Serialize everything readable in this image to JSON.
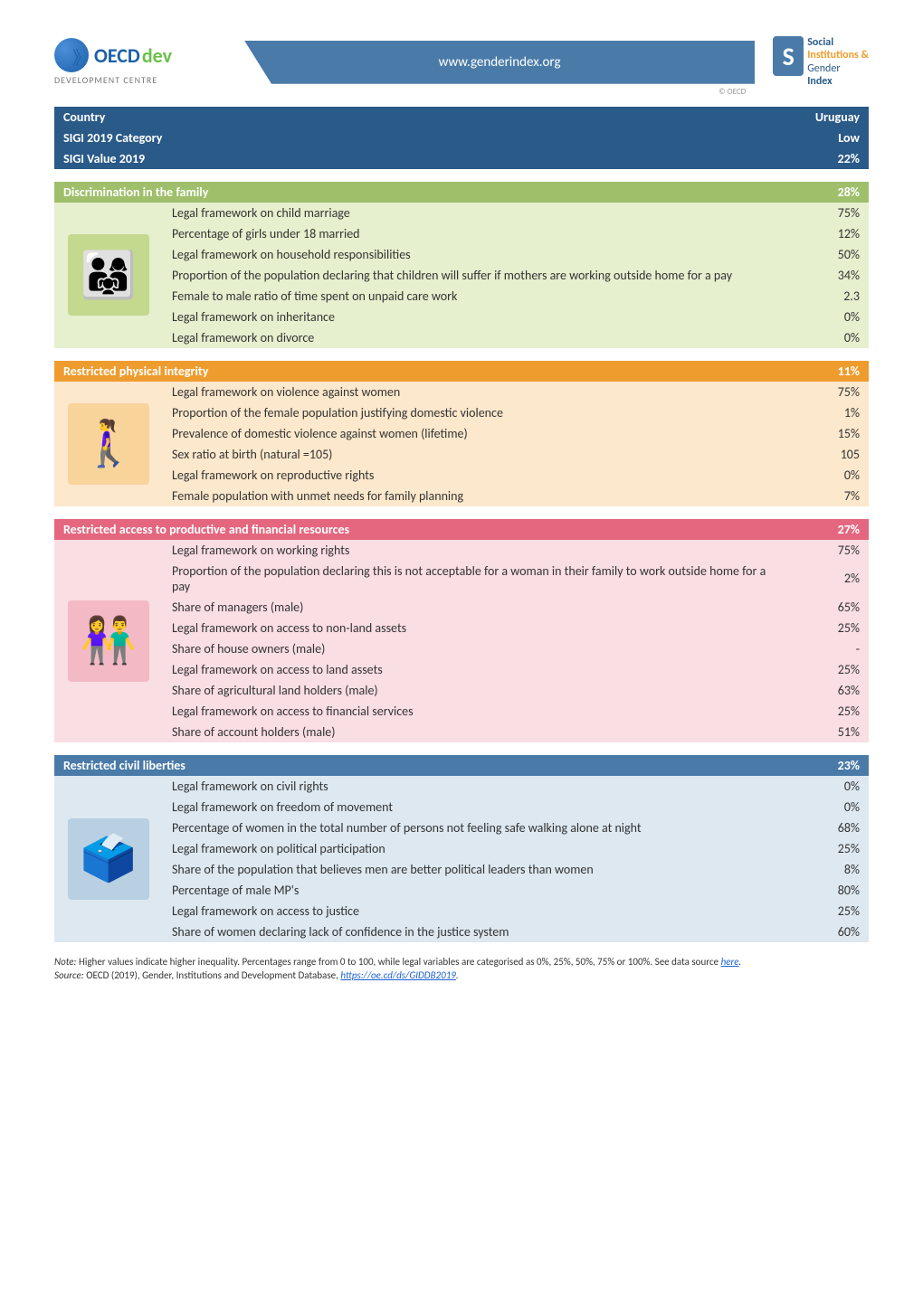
{
  "header": {
    "oecd_name": "OECD",
    "oecd_dev": "dev",
    "oecd_sub": "DEVELOPMENT CENTRE",
    "banner_url": "www.genderindex.org",
    "banner_copyright": "© OECD",
    "sigi_line1": "Social",
    "sigi_line2": "Institutions &",
    "sigi_line3": "Gender",
    "sigi_line4": "Index",
    "sigi_s": "S"
  },
  "summary": {
    "bg": "#2a5a88",
    "rows": [
      {
        "label": "Country",
        "value": "Uruguay"
      },
      {
        "label": "SIGI 2019 Category",
        "value": "Low"
      },
      {
        "label": "SIGI Value 2019",
        "value": "22%"
      }
    ]
  },
  "sections": [
    {
      "id": "family",
      "title": "Discrimination in the family",
      "title_value": "28%",
      "header_bg": "#9fbf6b",
      "row_bg": "#e6efce",
      "icon_bg": "#c4d98e",
      "icon_glyph": "👨‍👩‍👧",
      "rows": [
        {
          "label": "Legal framework on child marriage",
          "value": "75%"
        },
        {
          "label": "Percentage of girls under 18 married",
          "value": "12%"
        },
        {
          "label": "Legal framework on household responsibilities",
          "value": "50%"
        },
        {
          "label": "Proportion of the population declaring that children will suffer if mothers are working outside home for a pay",
          "value": "34%"
        },
        {
          "label": "Female to male ratio of time spent on unpaid care work",
          "value": "2.3"
        },
        {
          "label": "Legal framework on inheritance",
          "value": "0%"
        },
        {
          "label": "Legal framework on divorce",
          "value": "0%"
        }
      ]
    },
    {
      "id": "physical",
      "title": "Restricted physical integrity",
      "title_value": "11%",
      "header_bg": "#ef9c2e",
      "row_bg": "#fce8cc",
      "icon_bg": "#f8d49a",
      "icon_glyph": "🚶‍♀️",
      "rows": [
        {
          "label": "Legal framework on violence against women",
          "value": "75%"
        },
        {
          "label": "Proportion of the female population justifying  domestic violence",
          "value": "1%"
        },
        {
          "label": "Prevalence of domestic violence against women (lifetime)",
          "value": "15%"
        },
        {
          "label": "Sex ratio at birth (natural =105)",
          "value": "105"
        },
        {
          "label": "Legal framework on reproductive rights",
          "value": "0%"
        },
        {
          "label": "Female population with unmet needs for family planning",
          "value": "7%"
        }
      ]
    },
    {
      "id": "resources",
      "title": "Restricted access to productive and financial resources",
      "title_value": "27%",
      "header_bg": "#e4677f",
      "row_bg": "#f9dee4",
      "icon_bg": "#f3b9c5",
      "icon_glyph": "👫",
      "rows": [
        {
          "label": "Legal framework on working rights",
          "value": "75%"
        },
        {
          "label": "Proportion of the population declaring this is not acceptable for a woman in their family to work outside home for a pay",
          "value": "2%"
        },
        {
          "label": "Share of managers (male)",
          "value": "65%"
        },
        {
          "label": "Legal framework on access to non-land assets",
          "value": "25%"
        },
        {
          "label": "Share of house owners (male)",
          "value": "-"
        },
        {
          "label": "Legal framework on access to land assets",
          "value": "25%"
        },
        {
          "label": "Share of agricultural land holders (male)",
          "value": "63%"
        },
        {
          "label": "Legal framework on access to financial services",
          "value": "25%"
        },
        {
          "label": "Share of account holders (male)",
          "value": "51%"
        }
      ]
    },
    {
      "id": "civil",
      "title": "Restricted civil liberties",
      "title_value": "23%",
      "header_bg": "#4a7ba8",
      "row_bg": "#dde8f0",
      "icon_bg": "#b9cfe2",
      "icon_glyph": "🗳️",
      "rows": [
        {
          "label": "Legal framework on civil rights",
          "value": "0%"
        },
        {
          "label": "Legal framework on freedom of movement",
          "value": "0%"
        },
        {
          "label": "Percentage of women in the total number of persons not feeling safe walking alone at night",
          "value": "68%"
        },
        {
          "label": "Legal framework on political participation",
          "value": "25%"
        },
        {
          "label": "Share of the population that believes men are better political leaders than women",
          "value": "8%"
        },
        {
          "label": "Percentage of  male MP's",
          "value": "80%"
        },
        {
          "label": "Legal framework on access to justice",
          "value": "25%"
        },
        {
          "label": "Share of women declaring lack of confidence in the justice system",
          "value": "60%"
        }
      ]
    }
  ],
  "footer": {
    "note_label": "Note:",
    "note_text": " Higher values indicate higher inequality. Percentages range from 0 to 100, while legal variables are categorised as 0%, 25%, 50%, 75% or 100%. See data source ",
    "note_link": "here",
    "source_label": "Source:",
    "source_text": " OECD (2019), Gender, Institutions and Development Database, ",
    "source_link": "https://oe.cd/ds/GIDDB2019",
    "period": "."
  }
}
